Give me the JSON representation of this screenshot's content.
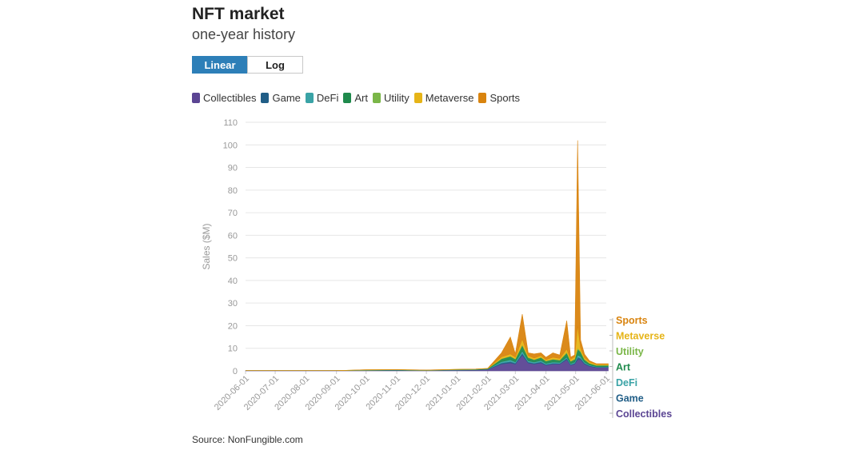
{
  "header": {
    "title": "NFT market",
    "subtitle": "one-year history"
  },
  "toggle": {
    "linear_label": "Linear",
    "log_label": "Log",
    "selected": "Linear"
  },
  "source": "Source: NonFungible.com",
  "colors": {
    "Collectibles": "#5b4593",
    "Game": "#215e87",
    "DeFi": "#3aa3a6",
    "Art": "#1f8a4c",
    "Utility": "#7ab648",
    "Metaverse": "#e6b417",
    "Sports": "#d9840f"
  },
  "chart_data": {
    "type": "area",
    "stacked": true,
    "xlabel": "",
    "ylabel": "Sales ($M)",
    "ylim": [
      0,
      110
    ],
    "yticks": [
      0,
      10,
      20,
      30,
      40,
      50,
      60,
      70,
      80,
      90,
      100,
      110
    ],
    "xticks": [
      "2020-06-01",
      "2020-07-01",
      "2020-08-01",
      "2020-09-01",
      "2020-10-01",
      "2020-11-01",
      "2020-12-01",
      "2021-01-01",
      "2021-02-01",
      "2021-03-01",
      "2021-04-01",
      "2021-05-01",
      "2021-06-01"
    ],
    "grid": true,
    "legend_position": "top",
    "end_labels": [
      "Sports",
      "Metaverse",
      "Utility",
      "Art",
      "DeFi",
      "Game",
      "Collectibles"
    ],
    "x": [
      "2020-06-01",
      "2020-07-01",
      "2020-08-01",
      "2020-09-01",
      "2020-10-01",
      "2020-11-01",
      "2020-12-01",
      "2021-01-01",
      "2021-01-20",
      "2021-02-01",
      "2021-02-15",
      "2021-02-24",
      "2021-03-01",
      "2021-03-08",
      "2021-03-14",
      "2021-03-20",
      "2021-03-27",
      "2021-04-01",
      "2021-04-08",
      "2021-04-15",
      "2021-04-22",
      "2021-04-26",
      "2021-04-30",
      "2021-05-03",
      "2021-05-06",
      "2021-05-10",
      "2021-05-15",
      "2021-05-22",
      "2021-05-29",
      "2021-06-03"
    ],
    "series": [
      {
        "name": "Collectibles",
        "values": [
          0.1,
          0.1,
          0.1,
          0.1,
          0.2,
          0.2,
          0.2,
          0.3,
          0.4,
          0.6,
          3.0,
          3.5,
          3.0,
          7.0,
          3.5,
          3.0,
          3.5,
          2.5,
          3.0,
          3.0,
          5.0,
          2.5,
          3.0,
          5.0,
          5.0,
          3.0,
          2.0,
          1.5,
          1.5,
          1.5
        ]
      },
      {
        "name": "Game",
        "values": [
          0.0,
          0.0,
          0.0,
          0.0,
          0.0,
          0.1,
          0.0,
          0.1,
          0.1,
          0.1,
          0.5,
          0.6,
          0.4,
          0.8,
          0.4,
          0.4,
          0.5,
          0.3,
          0.4,
          0.3,
          0.5,
          0.3,
          0.4,
          1.0,
          0.6,
          0.4,
          0.3,
          0.2,
          0.2,
          0.2
        ]
      },
      {
        "name": "DeFi",
        "values": [
          0.0,
          0.0,
          0.0,
          0.0,
          0.1,
          0.1,
          0.0,
          0.1,
          0.1,
          0.1,
          0.6,
          0.8,
          0.6,
          1.0,
          0.6,
          0.5,
          0.6,
          0.5,
          0.5,
          0.4,
          0.6,
          0.4,
          0.5,
          1.0,
          0.8,
          0.5,
          0.3,
          0.2,
          0.2,
          0.2
        ]
      },
      {
        "name": "Art",
        "values": [
          0.0,
          0.0,
          0.0,
          0.0,
          0.1,
          0.1,
          0.1,
          0.1,
          0.1,
          0.2,
          1.2,
          1.5,
          1.2,
          2.5,
          1.3,
          1.0,
          1.3,
          1.0,
          1.2,
          1.0,
          1.8,
          1.0,
          1.2,
          2.5,
          2.0,
          1.0,
          0.7,
          0.5,
          0.5,
          0.5
        ]
      },
      {
        "name": "Utility",
        "values": [
          0.0,
          0.0,
          0.0,
          0.0,
          0.0,
          0.0,
          0.0,
          0.0,
          0.0,
          0.0,
          0.1,
          0.1,
          0.1,
          0.3,
          0.2,
          0.1,
          0.1,
          0.1,
          0.1,
          0.1,
          0.3,
          0.1,
          0.1,
          0.5,
          0.3,
          0.2,
          0.1,
          0.1,
          0.1,
          0.1
        ]
      },
      {
        "name": "Metaverse",
        "values": [
          0.0,
          0.0,
          0.0,
          0.0,
          0.1,
          0.1,
          0.1,
          0.1,
          0.1,
          0.1,
          0.8,
          1.0,
          0.8,
          2.5,
          0.8,
          0.7,
          0.8,
          0.6,
          0.8,
          0.7,
          1.5,
          0.8,
          1.0,
          10.0,
          1.5,
          0.8,
          0.6,
          0.4,
          0.4,
          0.4
        ]
      },
      {
        "name": "Sports",
        "values": [
          0.0,
          0.0,
          0.0,
          0.0,
          0.0,
          0.0,
          0.0,
          0.0,
          0.0,
          0.0,
          1.8,
          7.5,
          1.5,
          11.0,
          1.2,
          1.8,
          1.2,
          1.0,
          2.0,
          1.5,
          12.5,
          1.0,
          0.8,
          82.0,
          3.5,
          1.5,
          0.5,
          0.3,
          0.3,
          0.3
        ]
      }
    ]
  }
}
